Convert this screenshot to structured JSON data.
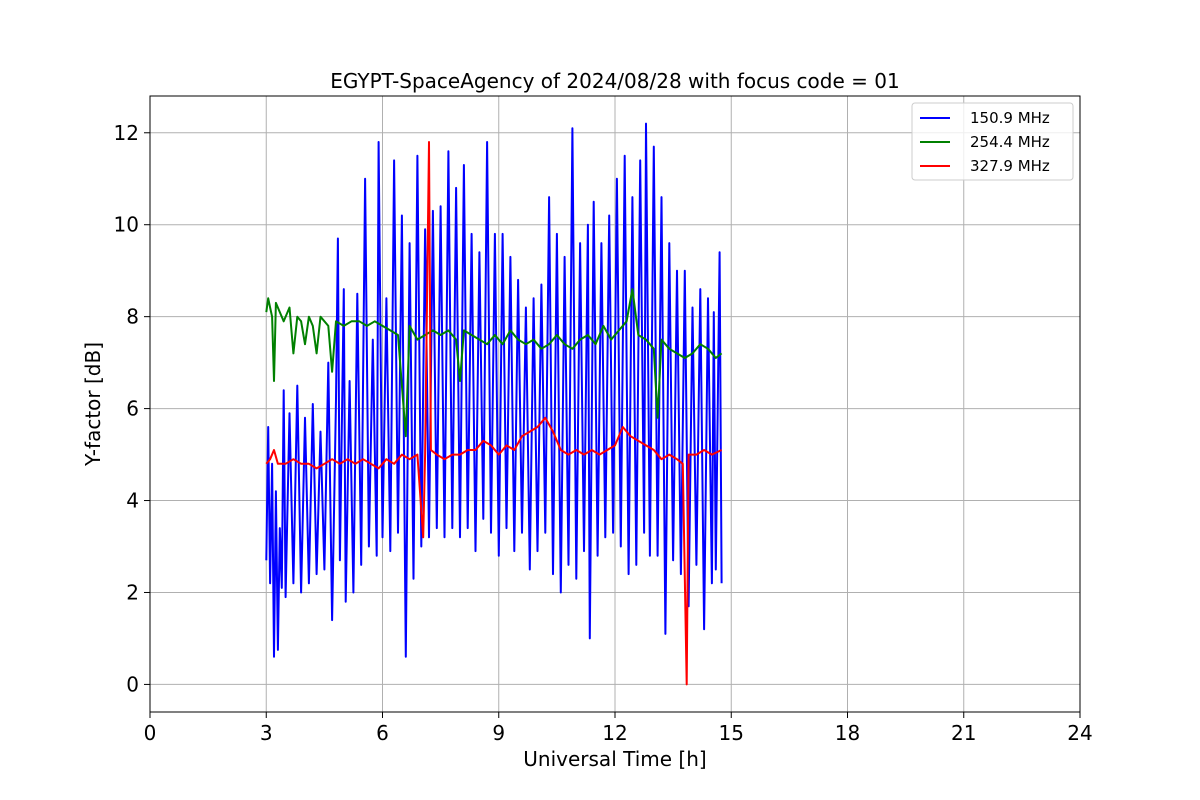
{
  "chart_data": {
    "type": "line",
    "title": "EGYPT-SpaceAgency of 2024/08/28 with focus code = 01",
    "xlabel": "Universal Time [h]",
    "ylabel": "Y-factor [dB]",
    "xlim": [
      0,
      24
    ],
    "ylim": [
      -0.6,
      12.8
    ],
    "xticks": [
      0,
      3,
      6,
      9,
      12,
      15,
      18,
      21,
      24
    ],
    "yticks": [
      0,
      2,
      4,
      6,
      8,
      10,
      12
    ],
    "grid": true,
    "legend_position": "top-right",
    "x_range_of_data": [
      3.0,
      14.75
    ],
    "series": [
      {
        "name": "150.9 MHz",
        "color": "#0000ff",
        "points": [
          [
            3.0,
            2.7
          ],
          [
            3.05,
            5.6
          ],
          [
            3.1,
            2.2
          ],
          [
            3.15,
            4.8
          ],
          [
            3.2,
            0.6
          ],
          [
            3.25,
            4.2
          ],
          [
            3.3,
            0.75
          ],
          [
            3.35,
            3.4
          ],
          [
            3.4,
            2.1
          ],
          [
            3.45,
            6.4
          ],
          [
            3.5,
            1.9
          ],
          [
            3.6,
            5.9
          ],
          [
            3.7,
            2.2
          ],
          [
            3.8,
            6.5
          ],
          [
            3.9,
            2.0
          ],
          [
            4.0,
            5.8
          ],
          [
            4.1,
            2.2
          ],
          [
            4.2,
            6.1
          ],
          [
            4.3,
            2.4
          ],
          [
            4.4,
            5.5
          ],
          [
            4.5,
            2.5
          ],
          [
            4.6,
            7.0
          ],
          [
            4.7,
            1.4
          ],
          [
            4.8,
            6.2
          ],
          [
            4.85,
            9.7
          ],
          [
            4.9,
            2.7
          ],
          [
            5.0,
            8.6
          ],
          [
            5.05,
            1.8
          ],
          [
            5.15,
            6.6
          ],
          [
            5.25,
            2.0
          ],
          [
            5.35,
            8.5
          ],
          [
            5.45,
            2.6
          ],
          [
            5.55,
            11.0
          ],
          [
            5.65,
            3.0
          ],
          [
            5.75,
            7.5
          ],
          [
            5.85,
            2.8
          ],
          [
            5.9,
            11.8
          ],
          [
            6.0,
            3.2
          ],
          [
            6.1,
            8.4
          ],
          [
            6.2,
            2.9
          ],
          [
            6.3,
            11.4
          ],
          [
            6.4,
            3.3
          ],
          [
            6.5,
            10.2
          ],
          [
            6.6,
            0.6
          ],
          [
            6.7,
            9.6
          ],
          [
            6.8,
            2.3
          ],
          [
            6.9,
            11.5
          ],
          [
            7.0,
            3.0
          ],
          [
            7.1,
            9.9
          ],
          [
            7.2,
            3.2
          ],
          [
            7.3,
            10.3
          ],
          [
            7.4,
            3.4
          ],
          [
            7.5,
            10.4
          ],
          [
            7.6,
            3.2
          ],
          [
            7.7,
            11.6
          ],
          [
            7.8,
            3.4
          ],
          [
            7.9,
            10.8
          ],
          [
            8.0,
            3.2
          ],
          [
            8.1,
            11.3
          ],
          [
            8.2,
            3.4
          ],
          [
            8.3,
            9.8
          ],
          [
            8.4,
            2.9
          ],
          [
            8.5,
            9.4
          ],
          [
            8.6,
            3.6
          ],
          [
            8.7,
            11.8
          ],
          [
            8.8,
            3.3
          ],
          [
            8.9,
            9.8
          ],
          [
            9.0,
            2.8
          ],
          [
            9.1,
            9.8
          ],
          [
            9.2,
            3.4
          ],
          [
            9.3,
            9.3
          ],
          [
            9.4,
            2.9
          ],
          [
            9.5,
            8.8
          ],
          [
            9.6,
            3.3
          ],
          [
            9.7,
            8.2
          ],
          [
            9.8,
            2.5
          ],
          [
            9.9,
            8.4
          ],
          [
            10.0,
            2.9
          ],
          [
            10.1,
            8.7
          ],
          [
            10.2,
            3.3
          ],
          [
            10.3,
            10.6
          ],
          [
            10.4,
            2.4
          ],
          [
            10.5,
            9.8
          ],
          [
            10.6,
            2.0
          ],
          [
            10.7,
            9.3
          ],
          [
            10.8,
            2.6
          ],
          [
            10.9,
            12.1
          ],
          [
            11.0,
            2.3
          ],
          [
            11.1,
            9.6
          ],
          [
            11.2,
            2.9
          ],
          [
            11.3,
            10.0
          ],
          [
            11.35,
            1.0
          ],
          [
            11.45,
            10.5
          ],
          [
            11.55,
            2.8
          ],
          [
            11.65,
            9.6
          ],
          [
            11.75,
            3.2
          ],
          [
            11.85,
            10.2
          ],
          [
            11.95,
            3.3
          ],
          [
            12.05,
            11.0
          ],
          [
            12.15,
            3.0
          ],
          [
            12.25,
            11.5
          ],
          [
            12.35,
            2.4
          ],
          [
            12.45,
            10.6
          ],
          [
            12.55,
            2.6
          ],
          [
            12.65,
            11.4
          ],
          [
            12.75,
            3.3
          ],
          [
            12.8,
            12.2
          ],
          [
            12.9,
            2.8
          ],
          [
            13.0,
            11.7
          ],
          [
            13.1,
            2.8
          ],
          [
            13.2,
            10.6
          ],
          [
            13.3,
            1.1
          ],
          [
            13.4,
            9.6
          ],
          [
            13.5,
            2.7
          ],
          [
            13.6,
            9.0
          ],
          [
            13.7,
            2.4
          ],
          [
            13.8,
            9.0
          ],
          [
            13.9,
            1.7
          ],
          [
            14.0,
            8.2
          ],
          [
            14.1,
            2.6
          ],
          [
            14.2,
            8.6
          ],
          [
            14.3,
            1.2
          ],
          [
            14.4,
            8.4
          ],
          [
            14.5,
            2.2
          ],
          [
            14.55,
            8.1
          ],
          [
            14.6,
            2.5
          ],
          [
            14.7,
            9.4
          ],
          [
            14.75,
            2.2
          ]
        ]
      },
      {
        "name": "254.4 MHz",
        "color": "#008000",
        "points": [
          [
            3.0,
            8.1
          ],
          [
            3.05,
            8.4
          ],
          [
            3.1,
            8.2
          ],
          [
            3.15,
            8.0
          ],
          [
            3.2,
            6.6
          ],
          [
            3.25,
            8.3
          ],
          [
            3.35,
            8.1
          ],
          [
            3.45,
            7.9
          ],
          [
            3.6,
            8.2
          ],
          [
            3.7,
            7.2
          ],
          [
            3.8,
            8.0
          ],
          [
            3.9,
            7.9
          ],
          [
            4.0,
            7.4
          ],
          [
            4.1,
            8.0
          ],
          [
            4.2,
            7.8
          ],
          [
            4.3,
            7.2
          ],
          [
            4.4,
            8.0
          ],
          [
            4.6,
            7.8
          ],
          [
            4.7,
            6.8
          ],
          [
            4.8,
            7.9
          ],
          [
            5.0,
            7.8
          ],
          [
            5.2,
            7.9
          ],
          [
            5.4,
            7.9
          ],
          [
            5.6,
            7.8
          ],
          [
            5.8,
            7.9
          ],
          [
            6.0,
            7.8
          ],
          [
            6.2,
            7.7
          ],
          [
            6.4,
            7.6
          ],
          [
            6.6,
            5.4
          ],
          [
            6.7,
            7.8
          ],
          [
            6.9,
            7.5
          ],
          [
            7.1,
            7.6
          ],
          [
            7.3,
            7.7
          ],
          [
            7.5,
            7.6
          ],
          [
            7.7,
            7.7
          ],
          [
            7.9,
            7.5
          ],
          [
            8.0,
            6.6
          ],
          [
            8.1,
            7.7
          ],
          [
            8.3,
            7.6
          ],
          [
            8.5,
            7.5
          ],
          [
            8.7,
            7.4
          ],
          [
            8.9,
            7.6
          ],
          [
            9.1,
            7.4
          ],
          [
            9.3,
            7.7
          ],
          [
            9.5,
            7.5
          ],
          [
            9.7,
            7.4
          ],
          [
            9.9,
            7.5
          ],
          [
            10.1,
            7.3
          ],
          [
            10.3,
            7.4
          ],
          [
            10.5,
            7.6
          ],
          [
            10.7,
            7.4
          ],
          [
            10.9,
            7.3
          ],
          [
            11.1,
            7.5
          ],
          [
            11.3,
            7.6
          ],
          [
            11.5,
            7.4
          ],
          [
            11.7,
            7.8
          ],
          [
            11.9,
            7.5
          ],
          [
            12.1,
            7.7
          ],
          [
            12.3,
            7.9
          ],
          [
            12.45,
            8.6
          ],
          [
            12.6,
            7.6
          ],
          [
            12.8,
            7.5
          ],
          [
            13.0,
            7.3
          ],
          [
            13.1,
            5.8
          ],
          [
            13.2,
            7.5
          ],
          [
            13.4,
            7.3
          ],
          [
            13.6,
            7.2
          ],
          [
            13.8,
            7.1
          ],
          [
            14.0,
            7.2
          ],
          [
            14.2,
            7.4
          ],
          [
            14.4,
            7.3
          ],
          [
            14.6,
            7.1
          ],
          [
            14.75,
            7.2
          ]
        ]
      },
      {
        "name": "327.9 MHz",
        "color": "#ff0000",
        "points": [
          [
            3.0,
            4.8
          ],
          [
            3.1,
            4.9
          ],
          [
            3.2,
            5.1
          ],
          [
            3.3,
            4.8
          ],
          [
            3.5,
            4.8
          ],
          [
            3.7,
            4.9
          ],
          [
            3.9,
            4.8
          ],
          [
            4.1,
            4.8
          ],
          [
            4.3,
            4.7
          ],
          [
            4.5,
            4.8
          ],
          [
            4.7,
            4.9
          ],
          [
            4.9,
            4.8
          ],
          [
            5.1,
            4.9
          ],
          [
            5.3,
            4.8
          ],
          [
            5.5,
            4.9
          ],
          [
            5.7,
            4.8
          ],
          [
            5.9,
            4.7
          ],
          [
            6.1,
            4.9
          ],
          [
            6.3,
            4.8
          ],
          [
            6.5,
            5.0
          ],
          [
            6.7,
            4.9
          ],
          [
            6.9,
            5.0
          ],
          [
            7.05,
            3.2
          ],
          [
            7.1,
            5.0
          ],
          [
            7.2,
            11.8
          ],
          [
            7.25,
            5.1
          ],
          [
            7.4,
            5.0
          ],
          [
            7.6,
            4.9
          ],
          [
            7.8,
            5.0
          ],
          [
            8.0,
            5.0
          ],
          [
            8.2,
            5.1
          ],
          [
            8.4,
            5.1
          ],
          [
            8.6,
            5.3
          ],
          [
            8.8,
            5.2
          ],
          [
            9.0,
            5.0
          ],
          [
            9.2,
            5.2
          ],
          [
            9.4,
            5.1
          ],
          [
            9.6,
            5.4
          ],
          [
            9.8,
            5.5
          ],
          [
            10.0,
            5.6
          ],
          [
            10.2,
            5.8
          ],
          [
            10.4,
            5.5
          ],
          [
            10.6,
            5.1
          ],
          [
            10.8,
            5.0
          ],
          [
            11.0,
            5.1
          ],
          [
            11.2,
            5.0
          ],
          [
            11.4,
            5.1
          ],
          [
            11.6,
            5.0
          ],
          [
            11.8,
            5.1
          ],
          [
            12.0,
            5.2
          ],
          [
            12.2,
            5.6
          ],
          [
            12.4,
            5.4
          ],
          [
            12.6,
            5.3
          ],
          [
            12.8,
            5.2
          ],
          [
            13.0,
            5.1
          ],
          [
            13.2,
            4.9
          ],
          [
            13.4,
            5.0
          ],
          [
            13.6,
            4.9
          ],
          [
            13.75,
            4.8
          ],
          [
            13.85,
            0.0
          ],
          [
            13.9,
            5.0
          ],
          [
            14.1,
            5.0
          ],
          [
            14.3,
            5.1
          ],
          [
            14.5,
            5.0
          ],
          [
            14.75,
            5.1
          ]
        ]
      }
    ]
  }
}
